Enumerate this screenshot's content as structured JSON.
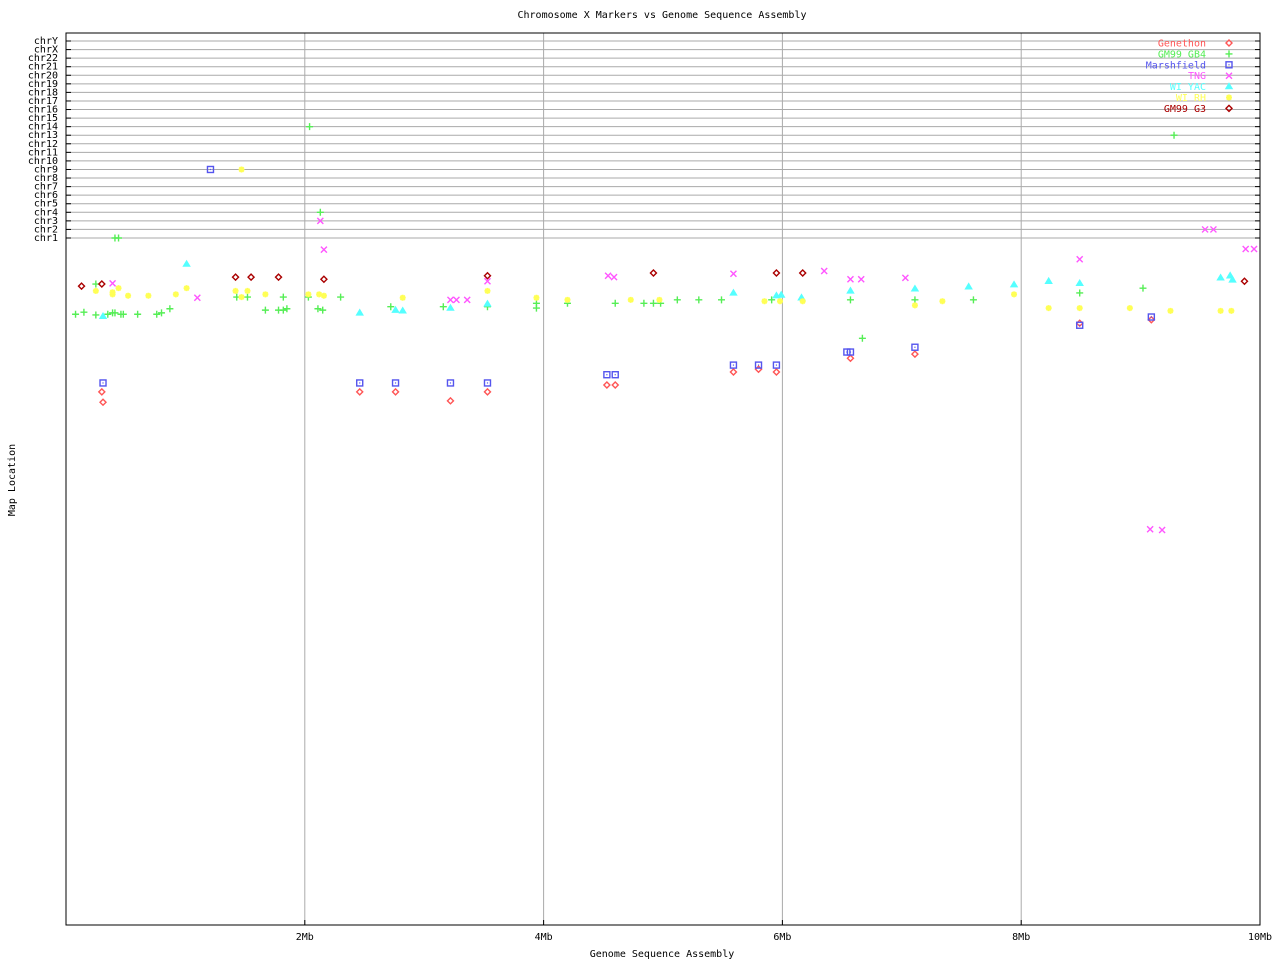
{
  "chart_data": {
    "type": "scatter",
    "title": "Chromosome X Markers vs Genome Sequence Assembly",
    "xlabel": "Genome Sequence Assembly",
    "ylabel": "Map Location",
    "xlim": [
      0,
      10
    ],
    "x_ticks": [
      {
        "value": 2,
        "label": "2Mb"
      },
      {
        "value": 4,
        "label": "4Mb"
      },
      {
        "value": 6,
        "label": "6Mb"
      },
      {
        "value": 8,
        "label": "8Mb"
      },
      {
        "value": 10,
        "label": "10Mb"
      }
    ],
    "y_categories": [
      "chr1",
      "chr2",
      "chr3",
      "chr4",
      "chr5",
      "chr6",
      "chr7",
      "chr8",
      "chr9",
      "chr10",
      "chr11",
      "chr12",
      "chr13",
      "chr14",
      "chr15",
      "chr16",
      "chr17",
      "chr18",
      "chr19",
      "chr20",
      "chr21",
      "chr22",
      "chrX",
      "chrY"
    ],
    "y_continuous_range": [
      0,
      100
    ],
    "grid": true,
    "legend_position": "top-right",
    "series": [
      {
        "name": "Genethon",
        "color": "#ff5555",
        "marker": "diamond",
        "points": [
          [
            0.3,
            22.4
          ],
          [
            0.31,
            23.9
          ],
          [
            2.46,
            22.4
          ],
          [
            2.76,
            22.4
          ],
          [
            3.22,
            23.7
          ],
          [
            3.53,
            22.4
          ],
          [
            4.53,
            21.4
          ],
          [
            4.6,
            21.4
          ],
          [
            5.59,
            19.5
          ],
          [
            5.8,
            19.1
          ],
          [
            5.95,
            19.5
          ],
          [
            6.57,
            17.5
          ],
          [
            7.11,
            16.9
          ],
          [
            8.49,
            12.4
          ],
          [
            9.09,
            11.9
          ]
        ]
      },
      {
        "name": "GM99 GB4",
        "color": "#55ee55",
        "marker": "plus",
        "points": [
          [
            0.41,
            "chr1"
          ],
          [
            0.44,
            "chr1"
          ],
          [
            2.04,
            "chr14"
          ],
          [
            2.13,
            "chr4"
          ],
          [
            9.28,
            "chr13"
          ],
          [
            0.08,
            11.1
          ],
          [
            0.15,
            10.8
          ],
          [
            0.25,
            6.7
          ],
          [
            0.25,
            11.2
          ],
          [
            0.35,
            11.1
          ],
          [
            0.39,
            10.9
          ],
          [
            0.41,
            10.9
          ],
          [
            0.46,
            11.1
          ],
          [
            0.48,
            11.1
          ],
          [
            0.6,
            11.1
          ],
          [
            0.76,
            11.1
          ],
          [
            0.8,
            10.9
          ],
          [
            0.87,
            10.3
          ],
          [
            1.43,
            8.6
          ],
          [
            1.52,
            8.6
          ],
          [
            1.67,
            10.5
          ],
          [
            1.78,
            10.5
          ],
          [
            1.82,
            10.5
          ],
          [
            1.85,
            10.3
          ],
          [
            1.82,
            8.6
          ],
          [
            2.03,
            8.6
          ],
          [
            2.11,
            10.3
          ],
          [
            2.15,
            10.5
          ],
          [
            2.3,
            8.6
          ],
          [
            2.72,
            10.0
          ],
          [
            3.16,
            10.0
          ],
          [
            3.53,
            10.0
          ],
          [
            3.94,
            9.5
          ],
          [
            3.94,
            10.2
          ],
          [
            4.2,
            9.5
          ],
          [
            4.6,
            9.5
          ],
          [
            4.84,
            9.5
          ],
          [
            4.92,
            9.5
          ],
          [
            4.98,
            9.5
          ],
          [
            5.12,
            9.0
          ],
          [
            5.3,
            9.0
          ],
          [
            5.49,
            9.0
          ],
          [
            5.91,
            9.0
          ],
          [
            6.57,
            9.0
          ],
          [
            6.67,
            14.6
          ],
          [
            7.11,
            9.0
          ],
          [
            7.6,
            9.0
          ],
          [
            8.49,
            8.0
          ],
          [
            9.02,
            7.3
          ]
        ]
      },
      {
        "name": "Marshfield",
        "color": "#5555ee",
        "marker": "square",
        "points": [
          [
            1.21,
            "chr9"
          ],
          [
            0.31,
            21.1
          ],
          [
            2.46,
            21.1
          ],
          [
            2.76,
            21.1
          ],
          [
            3.22,
            21.1
          ],
          [
            3.53,
            21.1
          ],
          [
            4.53,
            19.9
          ],
          [
            4.6,
            19.9
          ],
          [
            5.59,
            18.5
          ],
          [
            5.8,
            18.5
          ],
          [
            5.95,
            18.5
          ],
          [
            6.54,
            16.6
          ],
          [
            6.57,
            16.6
          ],
          [
            7.11,
            15.9
          ],
          [
            8.49,
            12.7
          ],
          [
            9.09,
            11.5
          ]
        ]
      },
      {
        "name": "TNG",
        "color": "#ff55ff",
        "marker": "cross",
        "points": [
          [
            2.13,
            "chr3"
          ],
          [
            9.54,
            "chr2"
          ],
          [
            9.61,
            "chr2"
          ],
          [
            0.39,
            6.6
          ],
          [
            1.1,
            8.7
          ],
          [
            2.16,
            1.7
          ],
          [
            3.22,
            9.0
          ],
          [
            3.27,
            9.0
          ],
          [
            3.36,
            9.0
          ],
          [
            3.53,
            6.3
          ],
          [
            4.54,
            5.5
          ],
          [
            4.59,
            5.7
          ],
          [
            5.59,
            5.2
          ],
          [
            6.35,
            4.8
          ],
          [
            6.57,
            6.0
          ],
          [
            6.66,
            6.0
          ],
          [
            7.03,
            5.8
          ],
          [
            8.49,
            3.1
          ],
          [
            9.08,
            42.4
          ],
          [
            9.18,
            42.5
          ],
          [
            9.88,
            1.6
          ],
          [
            9.95,
            1.6
          ]
        ]
      },
      {
        "name": "WI YAC",
        "color": "#55ffff",
        "marker": "triangle",
        "points": [
          [
            0.31,
            11.4
          ],
          [
            1.01,
            3.8
          ],
          [
            2.46,
            10.9
          ],
          [
            2.76,
            10.5
          ],
          [
            2.82,
            10.6
          ],
          [
            3.22,
            10.2
          ],
          [
            3.53,
            9.6
          ],
          [
            5.59,
            8.0
          ],
          [
            5.95,
            8.4
          ],
          [
            5.99,
            8.3
          ],
          [
            6.16,
            8.7
          ],
          [
            6.57,
            7.7
          ],
          [
            7.11,
            7.4
          ],
          [
            7.56,
            7.1
          ],
          [
            7.94,
            6.8
          ],
          [
            8.23,
            6.3
          ],
          [
            8.49,
            6.6
          ],
          [
            9.67,
            5.8
          ],
          [
            9.75,
            5.5
          ],
          [
            9.77,
            6.1
          ]
        ]
      },
      {
        "name": "WI RH",
        "color": "#ffff55",
        "marker": "star",
        "points": [
          [
            1.47,
            "chr9"
          ],
          [
            0.25,
            7.7
          ],
          [
            0.39,
            7.9
          ],
          [
            0.39,
            8.2
          ],
          [
            0.44,
            7.3
          ],
          [
            0.52,
            8.4
          ],
          [
            0.69,
            8.4
          ],
          [
            0.92,
            8.2
          ],
          [
            1.01,
            7.3
          ],
          [
            1.42,
            7.7
          ],
          [
            1.47,
            8.6
          ],
          [
            1.52,
            7.7
          ],
          [
            1.67,
            8.2
          ],
          [
            2.03,
            8.2
          ],
          [
            2.12,
            8.2
          ],
          [
            2.16,
            8.4
          ],
          [
            2.82,
            8.7
          ],
          [
            3.53,
            7.7
          ],
          [
            3.94,
            8.7
          ],
          [
            4.2,
            9.0
          ],
          [
            4.73,
            9.0
          ],
          [
            4.97,
            9.0
          ],
          [
            5.85,
            9.2
          ],
          [
            5.98,
            9.2
          ],
          [
            6.17,
            9.2
          ],
          [
            7.11,
            9.8
          ],
          [
            7.34,
            9.2
          ],
          [
            7.94,
            8.2
          ],
          [
            8.23,
            10.2
          ],
          [
            8.49,
            10.2
          ],
          [
            8.91,
            10.2
          ],
          [
            9.25,
            10.6
          ],
          [
            9.67,
            10.6
          ],
          [
            9.76,
            10.6
          ]
        ]
      },
      {
        "name": "GM99 G3",
        "color": "#aa0000",
        "marker": "diamond",
        "points": [
          [
            0.13,
            7.0
          ],
          [
            0.3,
            6.7
          ],
          [
            1.42,
            5.7
          ],
          [
            1.55,
            5.7
          ],
          [
            1.78,
            5.7
          ],
          [
            2.16,
            6.0
          ],
          [
            3.53,
            5.5
          ],
          [
            4.92,
            5.1
          ],
          [
            5.95,
            5.1
          ],
          [
            6.17,
            5.1
          ],
          [
            9.87,
            6.3
          ]
        ]
      }
    ]
  }
}
